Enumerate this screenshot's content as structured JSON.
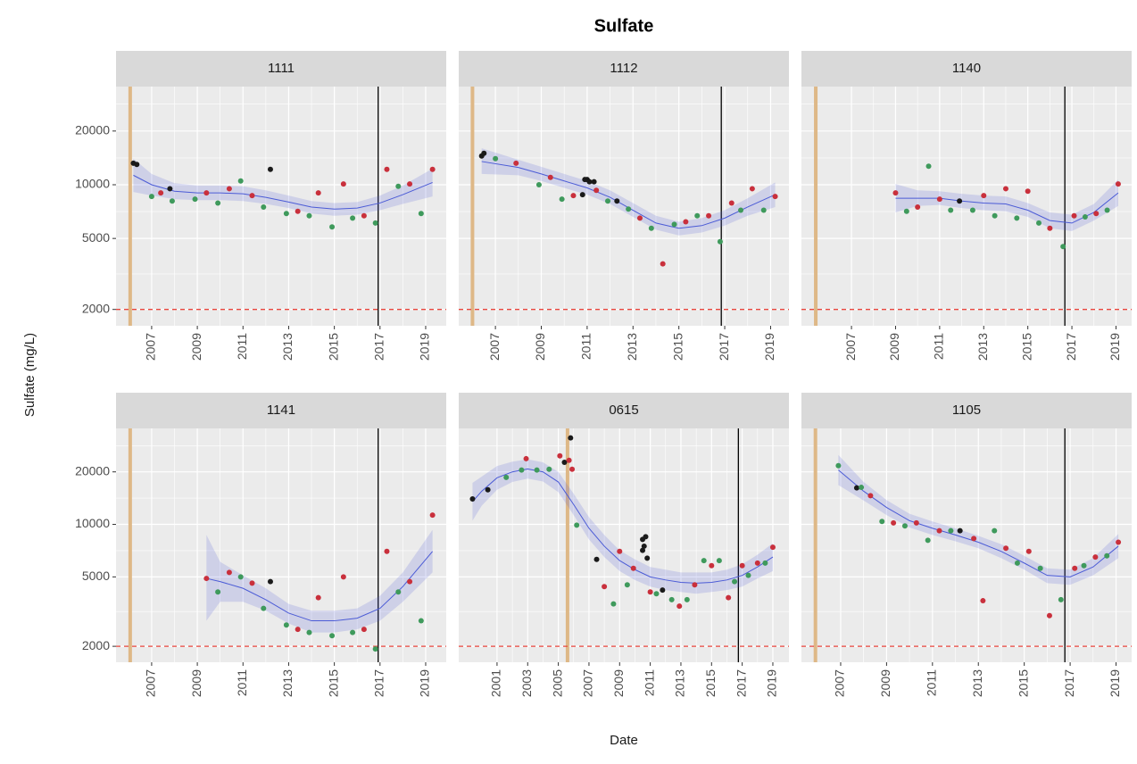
{
  "title": "Sulfate",
  "x_label": "Date",
  "y_label": "Sulfate (mg/L)",
  "chart_data": [
    {
      "type": "scatter",
      "title": "1111",
      "log_y": true,
      "grid": true,
      "xlim": [
        2005.44,
        2019.9
      ],
      "xticks": [
        2007,
        2009,
        2011,
        2013,
        2015,
        2017,
        2019
      ],
      "ylim": [
        1620,
        35500
      ],
      "yticks": [
        2000,
        5000,
        10000,
        20000
      ],
      "series": [
        {
          "color": "#1a1a1a",
          "x": [
            2006.2,
            2006.35,
            2007.8,
            2012.2
          ],
          "values": [
            13200,
            13000,
            9500,
            12200
          ]
        },
        {
          "color": "#c9303c",
          "x": [
            2007.4,
            2009.4,
            2010.4,
            2011.4,
            2013.4,
            2014.3,
            2015.4,
            2016.3,
            2017.3,
            2018.3,
            2019.3
          ],
          "values": [
            9000,
            9000,
            9500,
            8700,
            7100,
            9000,
            10100,
            6700,
            12200,
            10100,
            12200
          ]
        },
        {
          "color": "#3f9a5c",
          "x": [
            2007.0,
            2007.9,
            2008.9,
            2009.9,
            2010.9,
            2011.9,
            2012.9,
            2013.9,
            2014.9,
            2015.8,
            2016.8,
            2017.8,
            2018.8
          ],
          "values": [
            8600,
            8100,
            8300,
            7900,
            10500,
            7500,
            6900,
            6700,
            5800,
            6500,
            6100,
            9800,
            6900
          ]
        }
      ],
      "fit": {
        "color": "#4b5bd6",
        "x": [
          2006.2,
          2007,
          2008,
          2009,
          2010,
          2011,
          2012,
          2013,
          2014,
          2015,
          2016,
          2017,
          2018,
          2019.3
        ],
        "values": [
          11300,
          10000,
          9200,
          9000,
          9000,
          8900,
          8500,
          8000,
          7500,
          7300,
          7400,
          7900,
          8800,
          10300
        ],
        "lower": [
          9100,
          8700,
          8300,
          8200,
          8200,
          8100,
          7800,
          7400,
          6900,
          6700,
          6800,
          7200,
          7800,
          8600
        ],
        "upper": [
          14000,
          11500,
          10200,
          9900,
          9900,
          9800,
          9300,
          8700,
          8100,
          7900,
          8000,
          8700,
          9900,
          12300
        ]
      },
      "vlines": [
        {
          "value": 2006.06,
          "color": "#deb887"
        },
        {
          "value": 2016.92,
          "color": "#000000"
        }
      ],
      "hline": {
        "value": 2000,
        "color": "#e8453c"
      }
    },
    {
      "type": "scatter",
      "title": "1112",
      "log_y": true,
      "grid": true,
      "xlim": [
        2005.4,
        2019.8
      ],
      "xticks": [
        2007,
        2009,
        2011,
        2013,
        2015,
        2017,
        2019
      ],
      "ylim": [
        1620,
        35500
      ],
      "yticks": [
        2000,
        5000,
        10000,
        20000
      ],
      "series": [
        {
          "color": "#1a1a1a",
          "x": [
            2006.4,
            2006.5,
            2010.8,
            2010.9,
            2011.0,
            2011.1,
            2011.3,
            2012.3
          ],
          "values": [
            14500,
            15000,
            8800,
            10700,
            10700,
            10400,
            10400,
            8100
          ]
        },
        {
          "color": "#c9303c",
          "x": [
            2007.9,
            2009.4,
            2010.4,
            2011.4,
            2013.3,
            2014.3,
            2015.3,
            2016.3,
            2017.3,
            2018.2,
            2019.2
          ],
          "values": [
            13200,
            11000,
            8700,
            9300,
            6500,
            3600,
            6200,
            6700,
            7900,
            9500,
            8600
          ]
        },
        {
          "color": "#3f9a5c",
          "x": [
            2007.0,
            2008.9,
            2009.9,
            2011.9,
            2012.8,
            2013.8,
            2014.8,
            2015.8,
            2016.8,
            2017.7,
            2018.7
          ],
          "values": [
            14000,
            10000,
            8300,
            8100,
            7300,
            5700,
            6000,
            6700,
            4800,
            7200,
            7200
          ]
        }
      ],
      "fit": {
        "color": "#4b5bd6",
        "x": [
          2006.4,
          2008,
          2009,
          2010,
          2011,
          2012,
          2013,
          2014,
          2015,
          2016,
          2017,
          2018,
          2019.2
        ],
        "values": [
          13500,
          12500,
          11500,
          10500,
          9600,
          8500,
          7200,
          6100,
          5700,
          5900,
          6500,
          7500,
          8800
        ],
        "lower": [
          11500,
          11300,
          10500,
          9600,
          8800,
          7800,
          6600,
          5600,
          5200,
          5400,
          5900,
          6700,
          7500
        ],
        "upper": [
          16000,
          13800,
          12600,
          11500,
          10500,
          9300,
          7900,
          6700,
          6200,
          6500,
          7200,
          8400,
          10300
        ]
      },
      "vlines": [
        {
          "value": 2006.0,
          "color": "#deb887"
        },
        {
          "value": 2016.85,
          "color": "#000000"
        }
      ],
      "hline": {
        "value": 2000,
        "color": "#e8453c"
      }
    },
    {
      "type": "scatter",
      "title": "1140",
      "log_y": true,
      "grid": true,
      "xlim": [
        2004.73,
        2019.71
      ],
      "xticks": [
        2007,
        2009,
        2011,
        2013,
        2015,
        2017,
        2019
      ],
      "ylim": [
        1620,
        35500
      ],
      "yticks": [
        2000,
        5000,
        10000,
        20000
      ],
      "series": [
        {
          "color": "#1a1a1a",
          "x": [
            2011.9
          ],
          "values": [
            8100
          ]
        },
        {
          "color": "#c9303c",
          "x": [
            2009.0,
            2010.0,
            2011.0,
            2013.0,
            2014.0,
            2015.0,
            2016.0,
            2017.1,
            2018.1,
            2019.1
          ],
          "values": [
            9000,
            7500,
            8300,
            8700,
            9500,
            9200,
            5700,
            6700,
            6900,
            10100
          ]
        },
        {
          "color": "#3f9a5c",
          "x": [
            2009.5,
            2010.5,
            2011.5,
            2012.5,
            2013.5,
            2014.5,
            2015.5,
            2016.6,
            2017.6,
            2018.6
          ],
          "values": [
            7100,
            12700,
            7200,
            7200,
            6700,
            6500,
            6100,
            4500,
            6600,
            7200
          ]
        }
      ],
      "fit": {
        "color": "#4b5bd6",
        "x": [
          2009,
          2010,
          2011,
          2012,
          2013,
          2014,
          2015,
          2016,
          2017,
          2018,
          2019.1
        ],
        "values": [
          8400,
          8400,
          8400,
          8100,
          7900,
          7800,
          7200,
          6300,
          6100,
          7000,
          9000
        ],
        "lower": [
          7000,
          7600,
          7700,
          7400,
          7200,
          7100,
          6600,
          5700,
          5500,
          6300,
          7600
        ],
        "upper": [
          10100,
          9300,
          9200,
          8900,
          8700,
          8600,
          7900,
          7000,
          6800,
          7800,
          10700
        ]
      },
      "vlines": [
        {
          "value": 2005.38,
          "color": "#deb887"
        },
        {
          "value": 2016.68,
          "color": "#000000"
        }
      ],
      "hline": {
        "value": 2000,
        "color": "#e8453c"
      }
    },
    {
      "type": "scatter",
      "title": "1141",
      "log_y": true,
      "grid": true,
      "xlim": [
        2005.44,
        2019.9
      ],
      "xticks": [
        2007,
        2009,
        2011,
        2013,
        2015,
        2017,
        2019
      ],
      "ylim": [
        1620,
        35500
      ],
      "yticks": [
        2000,
        5000,
        10000,
        20000
      ],
      "series": [
        {
          "color": "#1a1a1a",
          "x": [
            2012.2
          ],
          "values": [
            4700
          ]
        },
        {
          "color": "#c9303c",
          "x": [
            2009.4,
            2010.4,
            2011.4,
            2013.4,
            2014.3,
            2015.4,
            2016.3,
            2017.3,
            2018.3,
            2019.3
          ],
          "values": [
            4900,
            5300,
            4600,
            2500,
            3800,
            5000,
            2500,
            7000,
            4700,
            11300
          ]
        },
        {
          "color": "#3f9a5c",
          "x": [
            2009.9,
            2010.9,
            2011.9,
            2012.9,
            2013.9,
            2014.9,
            2015.8,
            2016.8,
            2017.8,
            2018.8
          ],
          "values": [
            4100,
            5000,
            3300,
            2650,
            2400,
            2300,
            2400,
            1930,
            4100,
            2800
          ]
        }
      ],
      "fit": {
        "color": "#4b5bd6",
        "x": [
          2009.4,
          2010,
          2011,
          2012,
          2013,
          2014,
          2015,
          2016,
          2017,
          2018,
          2019.3
        ],
        "values": [
          4900,
          4700,
          4300,
          3700,
          3100,
          2800,
          2800,
          2900,
          3300,
          4400,
          7000
        ],
        "lower": [
          2800,
          3600,
          3600,
          3200,
          2700,
          2400,
          2400,
          2500,
          2800,
          3600,
          5300
        ],
        "upper": [
          8700,
          6100,
          5100,
          4300,
          3500,
          3200,
          3200,
          3300,
          3900,
          5300,
          9300
        ]
      },
      "vlines": [
        {
          "value": 2006.06,
          "color": "#deb887"
        },
        {
          "value": 2016.92,
          "color": "#000000"
        }
      ],
      "hline": {
        "value": 2000,
        "color": "#e8453c"
      }
    },
    {
      "type": "scatter",
      "title": "0615",
      "log_y": true,
      "grid": true,
      "xlim": [
        1998.5,
        2020.05
      ],
      "xticks": [
        2001,
        2003,
        2005,
        2007,
        2009,
        2011,
        2013,
        2015,
        2017,
        2019
      ],
      "ylim": [
        1620,
        35500
      ],
      "yticks": [
        2000,
        5000,
        10000,
        20000
      ],
      "series": [
        {
          "color": "#1a1a1a",
          "x": [
            1999.4,
            2000.4,
            2005.4,
            2005.8,
            2007.5,
            2010.5,
            2010.5,
            2010.6,
            2010.7,
            2010.8,
            2011.8
          ],
          "values": [
            14000,
            15800,
            22700,
            31300,
            6300,
            7100,
            8200,
            7500,
            8500,
            6400,
            4200
          ]
        },
        {
          "color": "#c9303c",
          "x": [
            2002.9,
            2005.1,
            2005.7,
            2005.9,
            2008.0,
            2009.0,
            2009.9,
            2011.0,
            2012.9,
            2013.9,
            2015.0,
            2016.1,
            2017.0,
            2018.0,
            2019.0
          ],
          "values": [
            23800,
            24700,
            23300,
            20700,
            4400,
            7000,
            5600,
            4100,
            3400,
            4500,
            5800,
            3800,
            5800,
            6000,
            7400
          ]
        },
        {
          "color": "#3f9a5c",
          "x": [
            2001.6,
            2002.6,
            2003.6,
            2004.4,
            2006.2,
            2008.6,
            2009.5,
            2011.4,
            2012.4,
            2013.4,
            2014.5,
            2015.5,
            2016.5,
            2017.4,
            2018.5
          ],
          "values": [
            18600,
            20500,
            20500,
            20700,
            9900,
            3500,
            4500,
            4000,
            3700,
            3700,
            6200,
            6200,
            4700,
            5100,
            6000
          ]
        }
      ],
      "fit": {
        "color": "#4b5bd6",
        "x": [
          1999.4,
          2000,
          2001,
          2002,
          2003,
          2004,
          2005,
          2006,
          2007,
          2008,
          2009,
          2010,
          2011,
          2012,
          2013,
          2014,
          2015,
          2016,
          2017,
          2018,
          2019
        ],
        "values": [
          13500,
          15500,
          18500,
          20000,
          20800,
          20000,
          17500,
          13000,
          9500,
          7500,
          6200,
          5500,
          5000,
          4800,
          4650,
          4600,
          4650,
          4800,
          5100,
          5700,
          6500
        ],
        "lower": [
          10500,
          12800,
          15800,
          17500,
          18300,
          17600,
          15300,
          11300,
          8200,
          6500,
          5400,
          4800,
          4400,
          4200,
          4100,
          4000,
          4100,
          4200,
          4400,
          4900,
          5400
        ],
        "upper": [
          17300,
          18800,
          21600,
          22900,
          23600,
          22700,
          20000,
          15000,
          11000,
          8700,
          7100,
          6300,
          5700,
          5500,
          5300,
          5300,
          5300,
          5500,
          5900,
          6700,
          7800
        ]
      },
      "vlines": [
        {
          "value": 2005.6,
          "color": "#deb887"
        },
        {
          "value": 2016.75,
          "color": "#000000"
        }
      ],
      "hline": {
        "value": 2000,
        "color": "#e8453c"
      }
    },
    {
      "type": "scatter",
      "title": "1105",
      "log_y": true,
      "grid": true,
      "xlim": [
        2005.29,
        2019.68
      ],
      "xticks": [
        2007,
        2009,
        2011,
        2013,
        2015,
        2017,
        2019
      ],
      "ylim": [
        1620,
        35500
      ],
      "yticks": [
        2000,
        5000,
        10000,
        20000
      ],
      "series": [
        {
          "color": "#1a1a1a",
          "x": [
            2007.7,
            2012.2
          ],
          "values": [
            16200,
            9200
          ]
        },
        {
          "color": "#c9303c",
          "x": [
            2008.3,
            2009.3,
            2010.3,
            2011.3,
            2012.8,
            2013.2,
            2014.2,
            2015.2,
            2016.1,
            2017.2,
            2018.1,
            2019.1
          ],
          "values": [
            14600,
            10200,
            10200,
            9200,
            8300,
            3650,
            7300,
            7000,
            3000,
            5600,
            6500,
            7900
          ]
        },
        {
          "color": "#3f9a5c",
          "x": [
            2006.9,
            2007.9,
            2008.8,
            2009.8,
            2010.8,
            2011.8,
            2013.7,
            2014.7,
            2015.7,
            2016.6,
            2017.6,
            2018.6
          ],
          "values": [
            21700,
            16300,
            10400,
            9800,
            8100,
            9200,
            9200,
            6000,
            5600,
            3700,
            5800,
            6600
          ]
        }
      ],
      "fit": {
        "color": "#4b5bd6",
        "x": [
          2006.9,
          2008,
          2009,
          2010,
          2011,
          2012,
          2013,
          2014,
          2015,
          2016,
          2017,
          2018,
          2019.1
        ],
        "values": [
          20500,
          15500,
          12500,
          10500,
          9500,
          8700,
          7900,
          7000,
          6000,
          5100,
          5000,
          5700,
          7500
        ],
        "lower": [
          16800,
          13700,
          11300,
          9600,
          8700,
          8000,
          7300,
          6400,
          5500,
          4600,
          4500,
          5100,
          6400
        ],
        "upper": [
          25000,
          17500,
          13800,
          11500,
          10400,
          9500,
          8600,
          7700,
          6600,
          5600,
          5500,
          6400,
          8800
        ]
      },
      "vlines": [
        {
          "value": 2005.9,
          "color": "#deb887"
        },
        {
          "value": 2016.77,
          "color": "#000000"
        }
      ],
      "hline": {
        "value": 2000,
        "color": "#e8453c"
      }
    }
  ]
}
